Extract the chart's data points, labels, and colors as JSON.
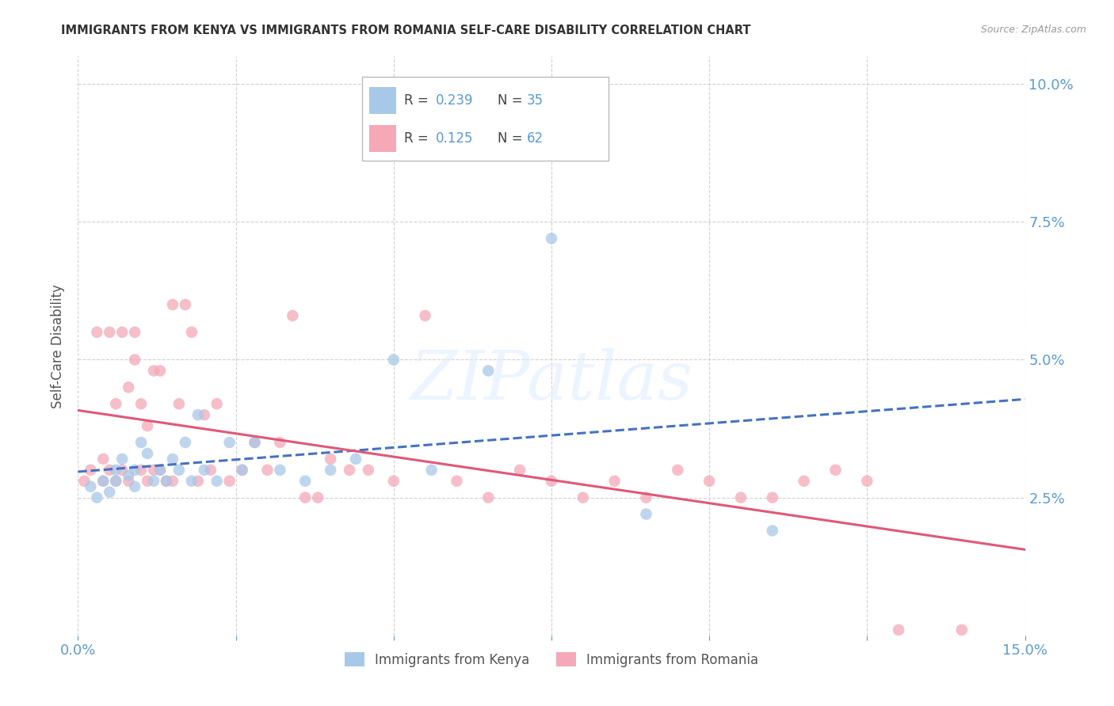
{
  "title": "IMMIGRANTS FROM KENYA VS IMMIGRANTS FROM ROMANIA SELF-CARE DISABILITY CORRELATION CHART",
  "source": "Source: ZipAtlas.com",
  "ylabel": "Self-Care Disability",
  "xlim": [
    0.0,
    0.15
  ],
  "ylim": [
    0.0,
    0.105
  ],
  "kenya_color": "#a8c8e8",
  "romania_color": "#f4a8b8",
  "kenya_line_color": "#4472c4",
  "romania_line_color": "#e05878",
  "kenya_R": 0.239,
  "kenya_N": 35,
  "romania_R": 0.125,
  "romania_N": 62,
  "kenya_scatter_x": [
    0.002,
    0.003,
    0.004,
    0.005,
    0.006,
    0.006,
    0.007,
    0.008,
    0.009,
    0.009,
    0.01,
    0.011,
    0.012,
    0.013,
    0.014,
    0.015,
    0.016,
    0.017,
    0.018,
    0.019,
    0.02,
    0.022,
    0.024,
    0.026,
    0.028,
    0.032,
    0.036,
    0.04,
    0.044,
    0.05,
    0.056,
    0.065,
    0.075,
    0.09,
    0.11
  ],
  "kenya_scatter_y": [
    0.027,
    0.025,
    0.028,
    0.026,
    0.03,
    0.028,
    0.032,
    0.029,
    0.027,
    0.03,
    0.035,
    0.033,
    0.028,
    0.03,
    0.028,
    0.032,
    0.03,
    0.035,
    0.028,
    0.04,
    0.03,
    0.028,
    0.035,
    0.03,
    0.035,
    0.03,
    0.028,
    0.03,
    0.032,
    0.05,
    0.03,
    0.048,
    0.072,
    0.022,
    0.019
  ],
  "romania_scatter_x": [
    0.001,
    0.002,
    0.003,
    0.004,
    0.004,
    0.005,
    0.005,
    0.006,
    0.006,
    0.007,
    0.007,
    0.008,
    0.008,
    0.009,
    0.009,
    0.01,
    0.01,
    0.011,
    0.011,
    0.012,
    0.012,
    0.013,
    0.013,
    0.014,
    0.015,
    0.015,
    0.016,
    0.017,
    0.018,
    0.019,
    0.02,
    0.021,
    0.022,
    0.024,
    0.026,
    0.028,
    0.03,
    0.032,
    0.034,
    0.036,
    0.038,
    0.04,
    0.043,
    0.046,
    0.05,
    0.055,
    0.06,
    0.065,
    0.07,
    0.075,
    0.08,
    0.085,
    0.09,
    0.095,
    0.1,
    0.105,
    0.11,
    0.115,
    0.12,
    0.125,
    0.13,
    0.14
  ],
  "romania_scatter_y": [
    0.028,
    0.03,
    0.055,
    0.032,
    0.028,
    0.055,
    0.03,
    0.042,
    0.028,
    0.055,
    0.03,
    0.045,
    0.028,
    0.05,
    0.055,
    0.03,
    0.042,
    0.038,
    0.028,
    0.03,
    0.048,
    0.048,
    0.03,
    0.028,
    0.028,
    0.06,
    0.042,
    0.06,
    0.055,
    0.028,
    0.04,
    0.03,
    0.042,
    0.028,
    0.03,
    0.035,
    0.03,
    0.035,
    0.058,
    0.025,
    0.025,
    0.032,
    0.03,
    0.03,
    0.028,
    0.058,
    0.028,
    0.025,
    0.03,
    0.028,
    0.025,
    0.028,
    0.025,
    0.03,
    0.028,
    0.025,
    0.025,
    0.028,
    0.03,
    0.028,
    0.001,
    0.001
  ],
  "watermark_text": "ZIPatlas",
  "watermark_color": "#ddeeff",
  "background_color": "#ffffff",
  "grid_color": "#cccccc",
  "tick_label_color": "#5b9bd5",
  "title_color": "#333333",
  "ylabel_color": "#555555",
  "source_color": "#999999",
  "right_ytick_labels": [
    "",
    "2.5%",
    "5.0%",
    "7.5%",
    "10.0%"
  ],
  "right_ytick_positions": [
    0.0,
    0.025,
    0.05,
    0.075,
    0.1
  ],
  "xtick_labels": [
    "0.0%",
    "",
    "",
    "",
    "",
    "",
    "15.0%"
  ],
  "xtick_positions": [
    0.0,
    0.025,
    0.05,
    0.075,
    0.1,
    0.125,
    0.15
  ]
}
